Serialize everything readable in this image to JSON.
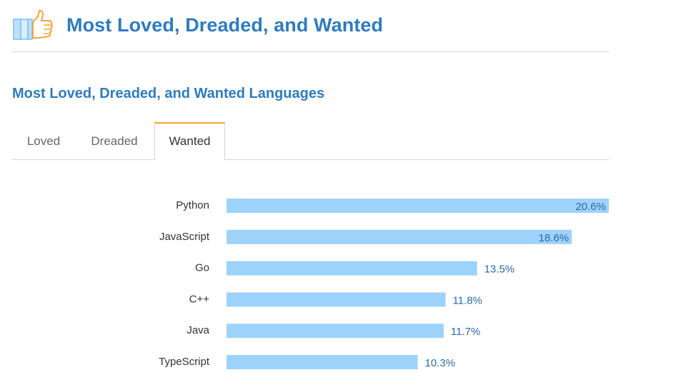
{
  "header": {
    "title": "Most Loved, Dreaded, and Wanted",
    "icon": "thumbs-up-icon"
  },
  "subtitle": "Most Loved, Dreaded, and Wanted Languages",
  "tabs": [
    {
      "label": "Loved",
      "active": false
    },
    {
      "label": "Dreaded",
      "active": false
    },
    {
      "label": "Wanted",
      "active": true
    }
  ],
  "colors": {
    "bar": "#9dd2fb",
    "value_text": "#2a6aa5",
    "accent": "#f4a43c",
    "title": "#2f7bbf"
  },
  "chart_data": {
    "type": "bar",
    "orientation": "horizontal",
    "categories": [
      "Python",
      "JavaScript",
      "Go",
      "C++",
      "Java",
      "TypeScript"
    ],
    "values": [
      20.6,
      18.6,
      13.5,
      11.8,
      11.7,
      10.3
    ],
    "value_labels": [
      "20.6%",
      "18.6%",
      "13.5%",
      "11.8%",
      "11.7%",
      "10.3%"
    ],
    "unit": "%",
    "xlim": [
      0,
      20.6
    ],
    "grid": false
  }
}
